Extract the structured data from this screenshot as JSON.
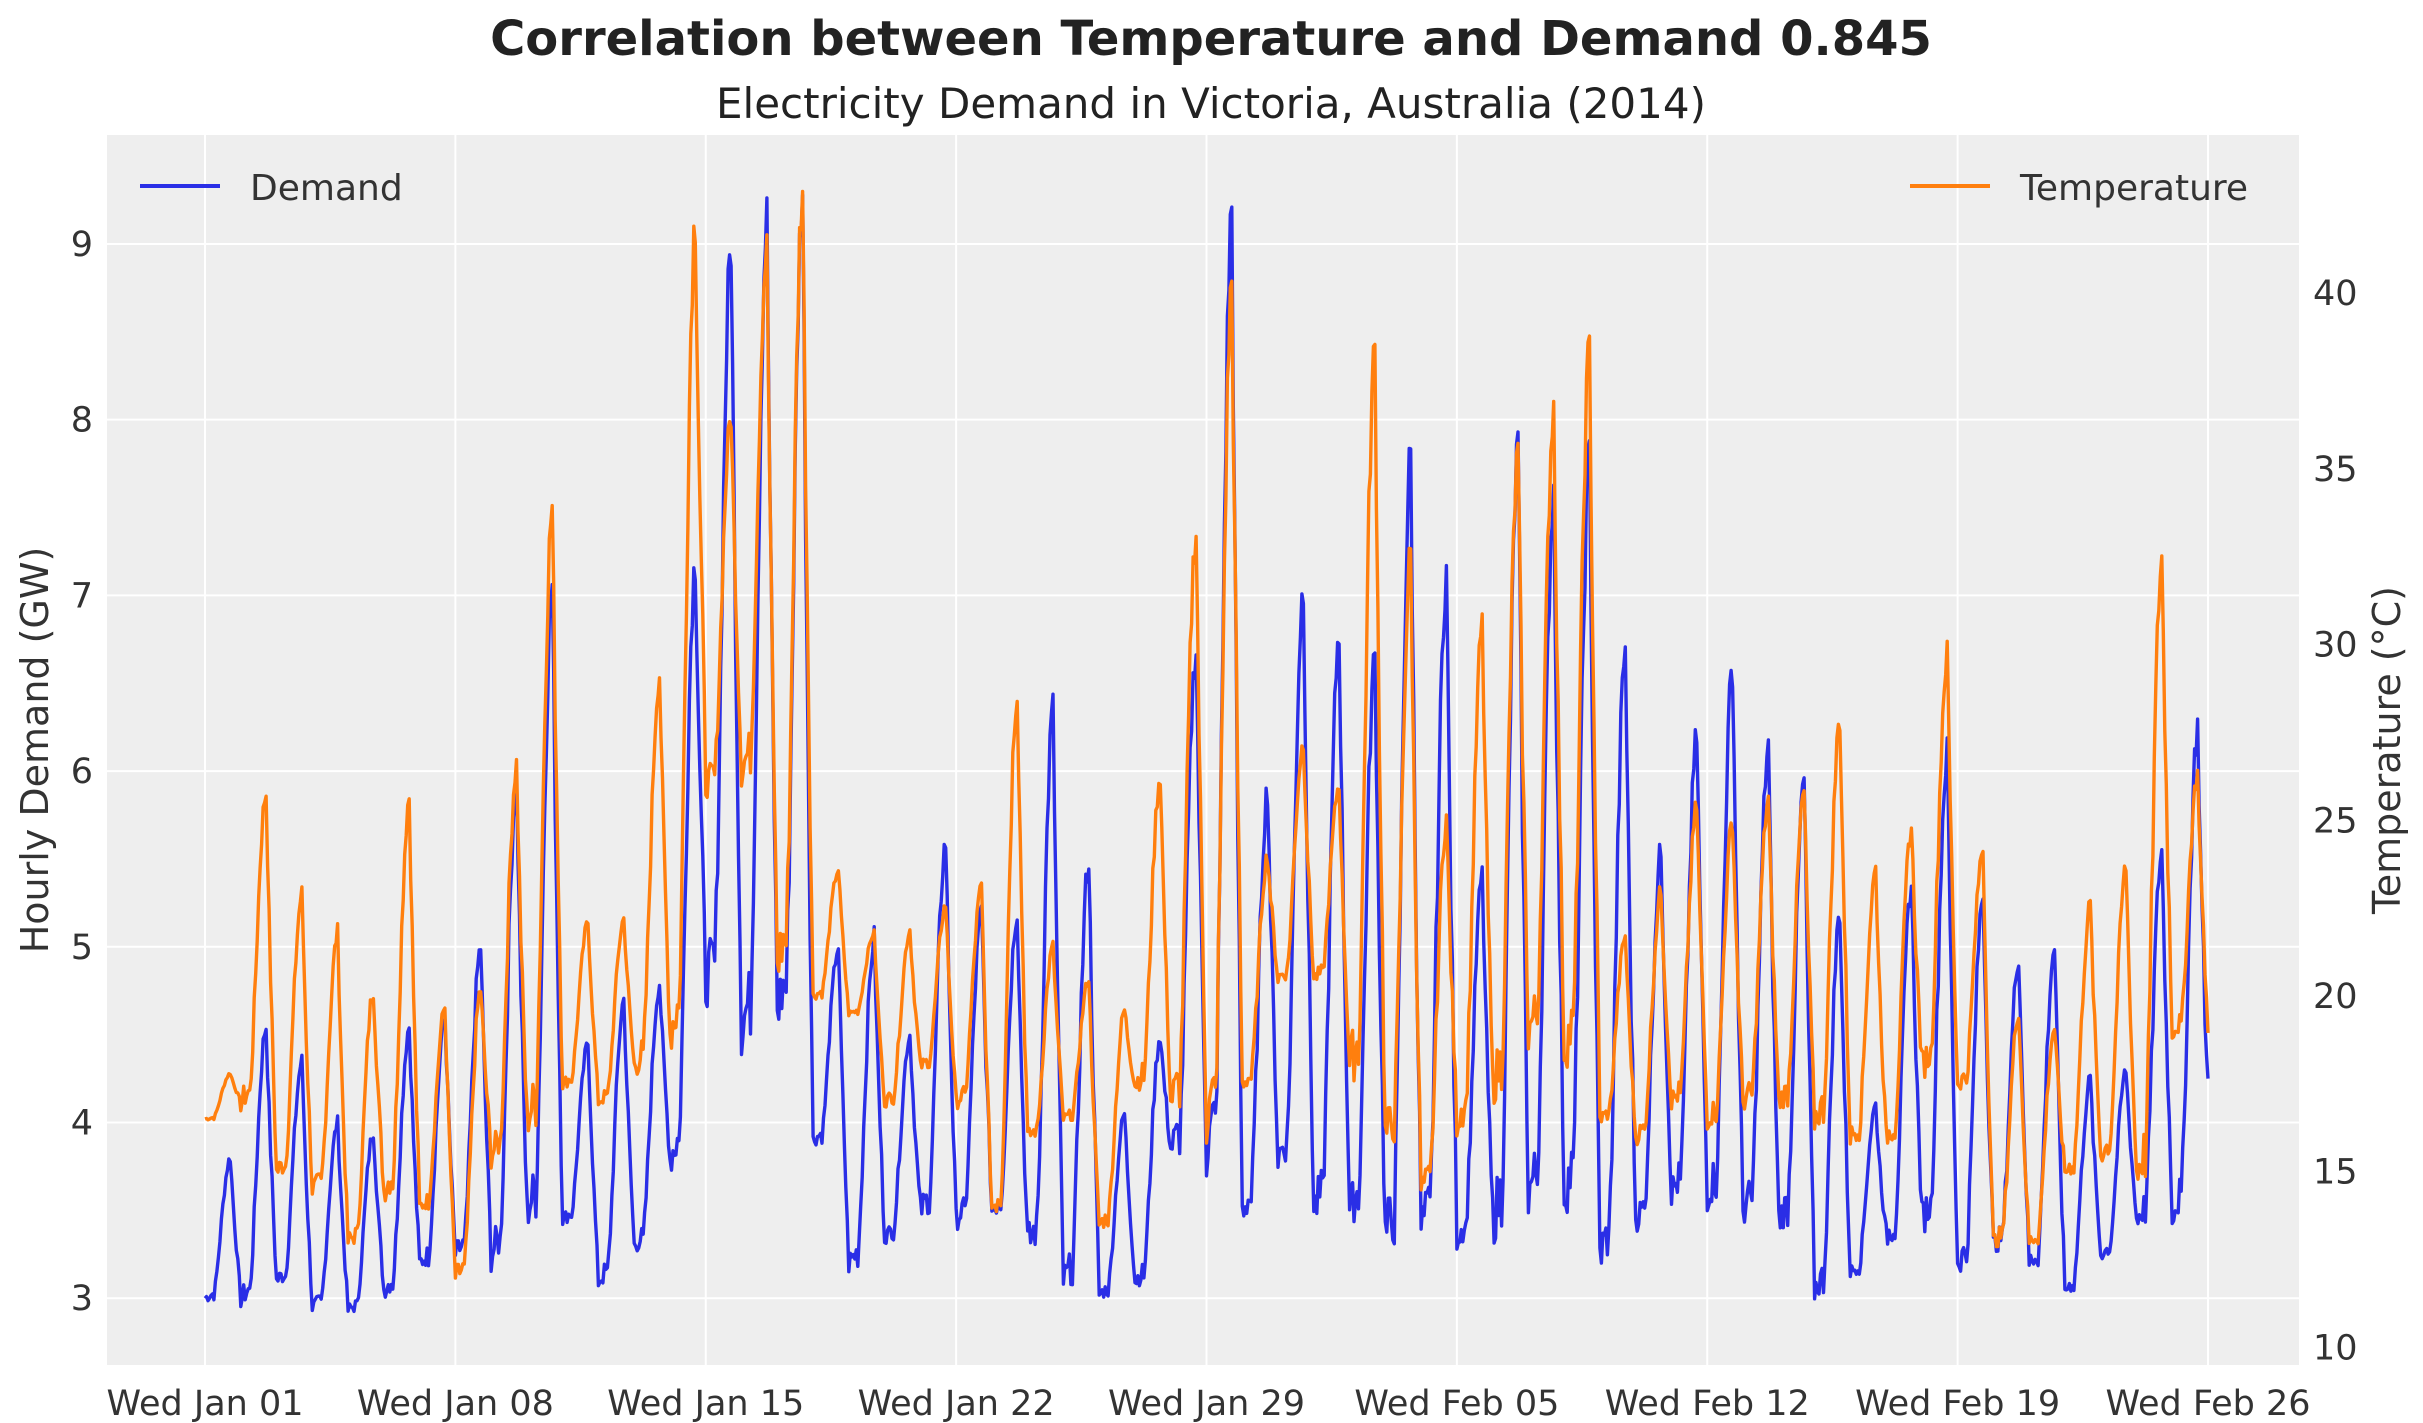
{
  "chart_data": {
    "type": "line",
    "title": "Correlation between Temperature and Demand 0.845",
    "subtitle": "Electricity Demand in Victoria, Australia (2014)",
    "xlabel": "",
    "ylabel": "Hourly Demand (GW)",
    "y2label": "Temperature (°C)",
    "x_range": [
      "2014-01-01",
      "2014-02-26"
    ],
    "ylim": [
      2.62,
      9.62
    ],
    "y2lim": [
      9.5,
      44.5
    ],
    "x_ticks": [
      {
        "date": "2014-01-01",
        "label": "Wed Jan 01"
      },
      {
        "date": "2014-01-08",
        "label": "Wed Jan 08"
      },
      {
        "date": "2014-01-15",
        "label": "Wed Jan 15"
      },
      {
        "date": "2014-01-22",
        "label": "Wed Jan 22"
      },
      {
        "date": "2014-01-29",
        "label": "Wed Jan 29"
      },
      {
        "date": "2014-02-05",
        "label": "Wed Feb 05"
      },
      {
        "date": "2014-02-12",
        "label": "Wed Feb 12"
      },
      {
        "date": "2014-02-19",
        "label": "Wed Feb 19"
      },
      {
        "date": "2014-02-26",
        "label": "Wed Feb 26"
      }
    ],
    "y_ticks": [
      3,
      4,
      5,
      6,
      7,
      8,
      9
    ],
    "y2_ticks": [
      10,
      15,
      20,
      25,
      30,
      35,
      40
    ],
    "grid": true,
    "colors": {
      "demand": "#2a2ee6",
      "temperature": "#ff7f0e",
      "background": "#eeeeee",
      "grid": "#ffffff"
    },
    "series": [
      {
        "name": "Demand",
        "axis": "left",
        "legend_position": "top-left",
        "x": [
          "2014-01-01",
          "2014-01-02",
          "2014-01-03",
          "2014-01-04",
          "2014-01-05",
          "2014-01-06",
          "2014-01-07",
          "2014-01-08",
          "2014-01-09",
          "2014-01-10",
          "2014-01-11",
          "2014-01-12",
          "2014-01-13",
          "2014-01-14",
          "2014-01-15",
          "2014-01-16",
          "2014-01-17",
          "2014-01-18",
          "2014-01-19",
          "2014-01-20",
          "2014-01-21",
          "2014-01-22",
          "2014-01-23",
          "2014-01-24",
          "2014-01-25",
          "2014-01-26",
          "2014-01-27",
          "2014-01-28",
          "2014-01-29",
          "2014-01-30",
          "2014-01-31",
          "2014-02-01",
          "2014-02-02",
          "2014-02-03",
          "2014-02-04",
          "2014-02-05",
          "2014-02-06",
          "2014-02-07",
          "2014-02-08",
          "2014-02-09",
          "2014-02-10",
          "2014-02-11",
          "2014-02-12",
          "2014-02-13",
          "2014-02-14",
          "2014-02-15",
          "2014-02-16",
          "2014-02-17",
          "2014-02-18",
          "2014-02-19",
          "2014-02-20",
          "2014-02-21",
          "2014-02-22",
          "2014-02-23",
          "2014-02-24",
          "2014-02-25",
          "2014-02-26"
        ],
        "values": [
          3.8,
          4.55,
          4.35,
          4.0,
          3.95,
          4.55,
          4.6,
          5.0,
          5.95,
          7.05,
          4.45,
          4.7,
          4.8,
          7.2,
          9.0,
          9.15,
          9.3,
          5.0,
          5.05,
          4.5,
          5.6,
          5.2,
          5.2,
          6.35,
          5.5,
          4.05,
          4.5,
          6.7,
          9.2,
          5.9,
          7.05,
          6.8,
          6.65,
          7.8,
          7.15,
          5.4,
          7.85,
          7.6,
          7.8,
          6.7,
          5.55,
          6.2,
          6.6,
          6.15,
          5.95,
          5.2,
          4.1,
          5.35,
          6.1,
          5.3,
          4.95,
          5.0,
          4.25,
          4.3,
          5.55,
          6.25,
          4.4
        ],
        "min_values": [
          3.0,
          3.0,
          3.1,
          2.95,
          2.93,
          3.05,
          3.2,
          3.25,
          3.25,
          3.5,
          3.45,
          3.1,
          3.3,
          3.8,
          4.8,
          4.55,
          4.65,
          3.9,
          3.2,
          3.35,
          3.5,
          3.45,
          3.5,
          3.3,
          3.1,
          3.02,
          3.1,
          3.85,
          3.85,
          3.5,
          3.8,
          3.5,
          3.5,
          3.35,
          3.4,
          3.35,
          3.45,
          3.6,
          3.6,
          3.25,
          3.45,
          3.6,
          3.6,
          3.5,
          3.45,
          3.05,
          3.15,
          3.35,
          3.45,
          3.2,
          3.3,
          3.2,
          3.05,
          3.25,
          3.45,
          3.5,
          4.1
        ]
      },
      {
        "name": "Temperature",
        "axis": "right",
        "legend_position": "top-right",
        "x": [
          "2014-01-01",
          "2014-01-02",
          "2014-01-03",
          "2014-01-04",
          "2014-01-05",
          "2014-01-06",
          "2014-01-07",
          "2014-01-08",
          "2014-01-09",
          "2014-01-10",
          "2014-01-11",
          "2014-01-12",
          "2014-01-13",
          "2014-01-14",
          "2014-01-15",
          "2014-01-16",
          "2014-01-17",
          "2014-01-18",
          "2014-01-19",
          "2014-01-20",
          "2014-01-21",
          "2014-01-22",
          "2014-01-23",
          "2014-01-24",
          "2014-01-25",
          "2014-01-26",
          "2014-01-27",
          "2014-01-28",
          "2014-01-29",
          "2014-01-30",
          "2014-01-31",
          "2014-02-01",
          "2014-02-02",
          "2014-02-03",
          "2014-02-04",
          "2014-02-05",
          "2014-02-06",
          "2014-02-07",
          "2014-02-08",
          "2014-02-09",
          "2014-02-10",
          "2014-02-11",
          "2014-02-12",
          "2014-02-13",
          "2014-02-14",
          "2014-02-15",
          "2014-02-16",
          "2014-02-17",
          "2014-02-18",
          "2014-02-19",
          "2014-02-20",
          "2014-02-21",
          "2014-02-22",
          "2014-02-23",
          "2014-02-24",
          "2014-02-25",
          "2014-02-26"
        ],
        "values": [
          17.8,
          25.8,
          22.9,
          21.8,
          20.2,
          25.7,
          19.7,
          20.2,
          26.6,
          33.9,
          22.1,
          22.2,
          29.2,
          42.2,
          36.5,
          41.3,
          43.0,
          23.6,
          21.8,
          21.9,
          22.6,
          23.1,
          28.8,
          21.4,
          20.5,
          19.6,
          26.3,
          33.3,
          40.3,
          24.0,
          27.2,
          26.0,
          38.4,
          32.6,
          25.1,
          30.5,
          35.4,
          36.8,
          38.4,
          21.7,
          23.0,
          25.4,
          25.0,
          25.6,
          25.8,
          27.9,
          23.6,
          24.8,
          29.7,
          24.2,
          19.6,
          19.1,
          22.6,
          23.7,
          32.5,
          26.3,
          18.9
        ],
        "min_values": [
          16.5,
          17.0,
          15.0,
          14.5,
          13.0,
          14.5,
          14.0,
          12.0,
          15.5,
          16.5,
          17.5,
          17.0,
          18.0,
          19.0,
          26.0,
          26.5,
          21.0,
          20.0,
          19.5,
          17.0,
          18.0,
          17.0,
          14.0,
          16.0,
          16.5,
          13.5,
          17.5,
          17.0,
          16.5,
          17.5,
          20.5,
          20.5,
          18.0,
          16.0,
          14.5,
          16.5,
          17.5,
          19.0,
          18.5,
          16.5,
          16.0,
          17.0,
          16.5,
          17.0,
          17.0,
          16.5,
          16.0,
          16.0,
          18.0,
          17.5,
          13.0,
          13.0,
          15.0,
          15.5,
          15.0,
          19.0,
          19.0
        ]
      }
    ]
  }
}
